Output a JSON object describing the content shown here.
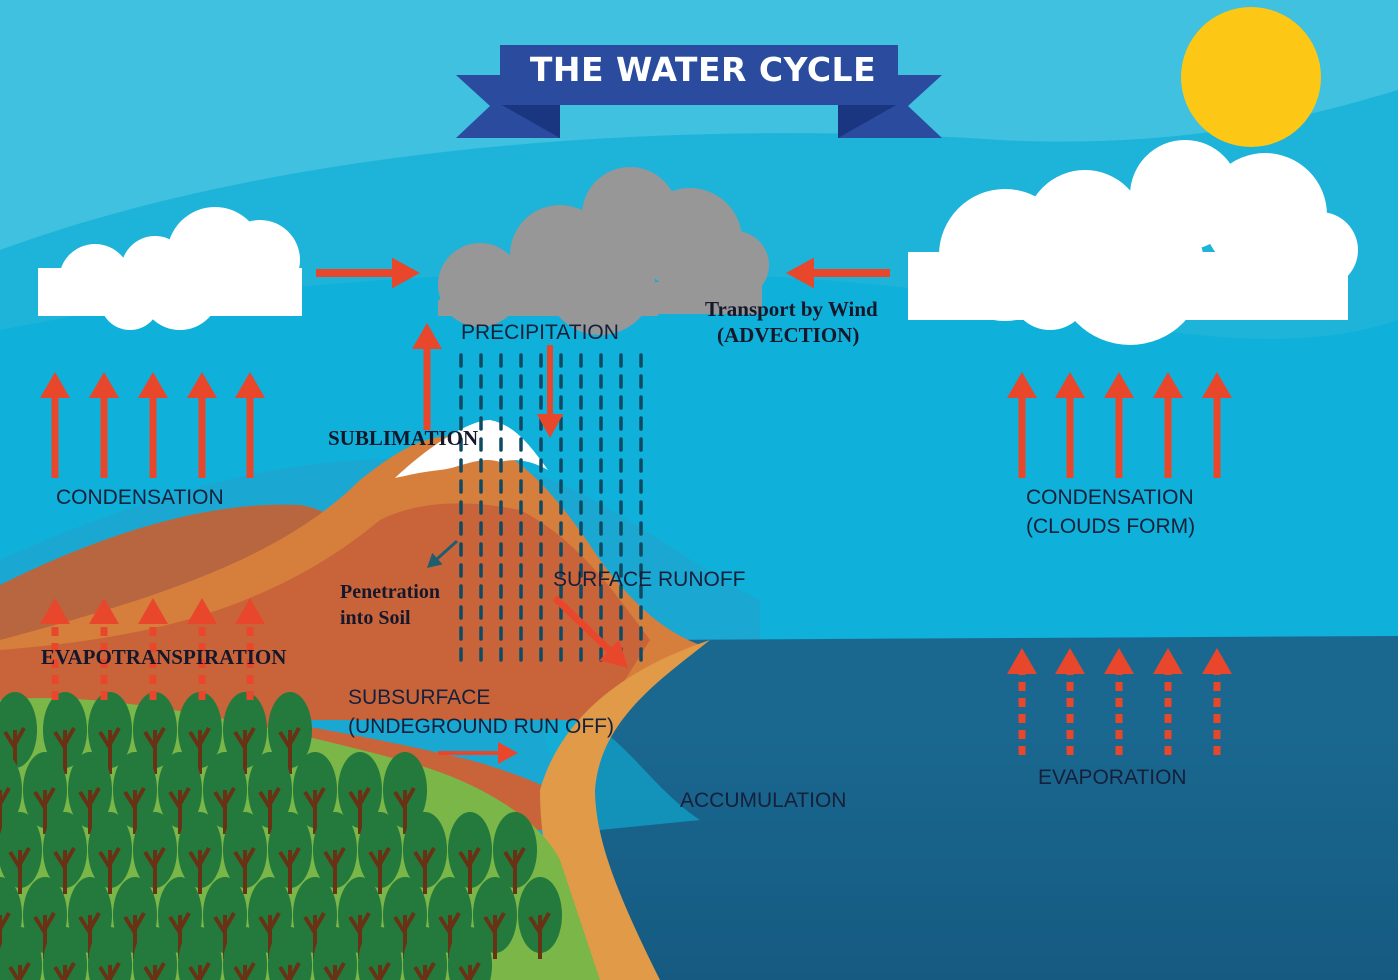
{
  "title": "THE WATER CYCLE",
  "labels": {
    "precipitation": "PRECIPITATION",
    "transport_line1": "Transport by Wind",
    "transport_line2": "(ADVECTION)",
    "sublimation": "SUBLIMATION",
    "condensation_left": "CONDENSATION",
    "condensation_right_line1": "CONDENSATION",
    "condensation_right_line2": "(CLOUDS FORM)",
    "penetration_line1": "Penetration",
    "penetration_line2": "into Soil",
    "surface_runoff": "SURFACE RUNOFF",
    "evapotranspiration": "EVAPOTRANSPIRATION",
    "subsurface_line1": "SUBSURFACE",
    "subsurface_line2": "(UNDEGROUND RUN OFF)",
    "accumulation": "ACCUMULATION",
    "evaporation": "EVAPORATION"
  },
  "colors": {
    "sky_light": "#3fc1df",
    "sky_band": "#1eb3d9",
    "ocean": "#1a6890",
    "ocean_deep": "#124f75",
    "mountain": "#d67e3c",
    "mountain_dark": "#c9643a",
    "land_dark": "#b86640",
    "sand": "#e09a48",
    "grass": "#7ab648",
    "tree": "#237a3c",
    "trunk": "#6a3215",
    "snow": "#ffffff",
    "storm_cloud": "#979797",
    "cloud": "#ffffff",
    "sun": "#fdc715",
    "arrow": "#e8472c",
    "rain": "#0f4a63",
    "banner": "#2b4b9e",
    "banner_dark": "#1b3680"
  },
  "icons": {
    "sun": "sun-icon",
    "storm_cloud": "rain-cloud-icon",
    "clouds": "cloud-icon"
  }
}
